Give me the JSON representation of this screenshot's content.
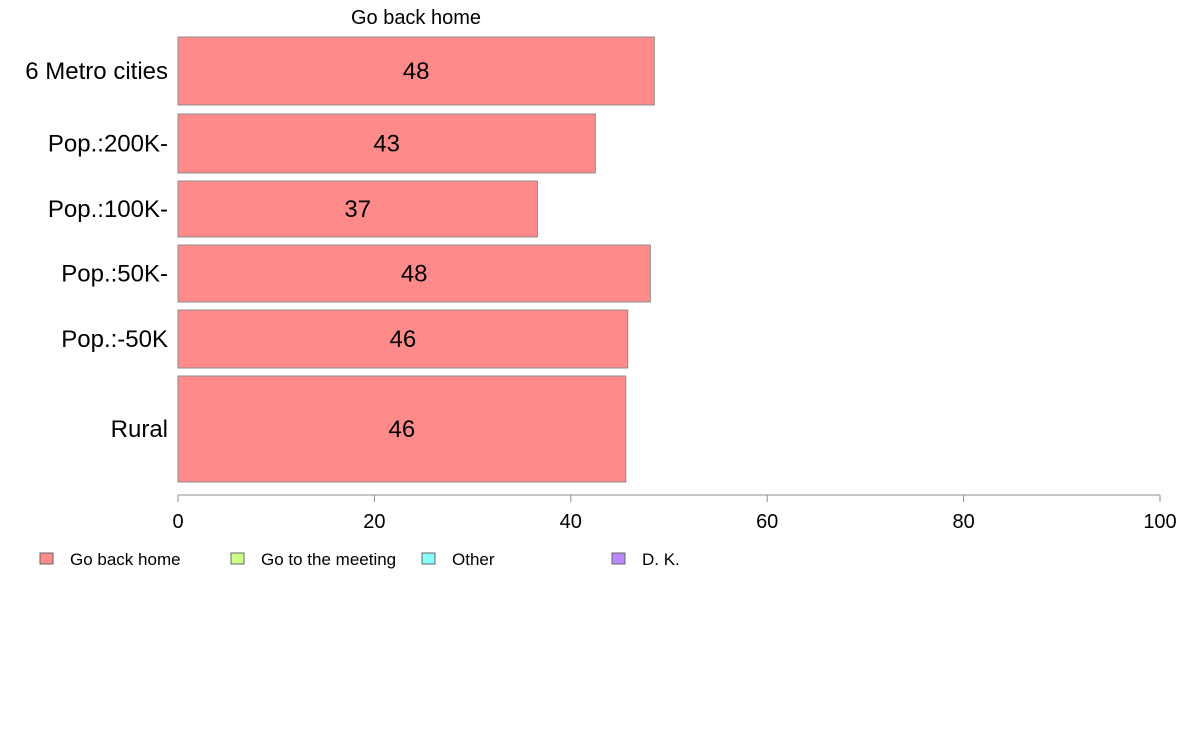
{
  "chart_data": {
    "type": "bar",
    "orientation": "horizontal",
    "title": "Go back home",
    "categories": [
      "6 Metro cities",
      "Pop.:200K-",
      "Pop.:100K-",
      "Pop.:50K-",
      "Pop.:-50K",
      "Rural"
    ],
    "series": [
      {
        "name": "Go back home",
        "values": [
          48.5,
          42.5,
          36.6,
          48.1,
          45.8,
          45.6
        ],
        "labels": [
          "48",
          "43",
          "37",
          "48",
          "46",
          "46"
        ],
        "color": "#ff8a8a"
      }
    ],
    "xlim": [
      0,
      100
    ],
    "xticks": [
      "0",
      "20",
      "40",
      "60",
      "80",
      "100"
    ],
    "grid": false,
    "legend": {
      "placement": "bottom-left",
      "items": [
        {
          "label": "Go back home",
          "color": "#ff8a8a"
        },
        {
          "label": "Go to the meeting",
          "color": "#ccff88"
        },
        {
          "label": "Other",
          "color": "#88ffff"
        },
        {
          "label": "D. K.",
          "color": "#bb88ff"
        }
      ]
    }
  }
}
